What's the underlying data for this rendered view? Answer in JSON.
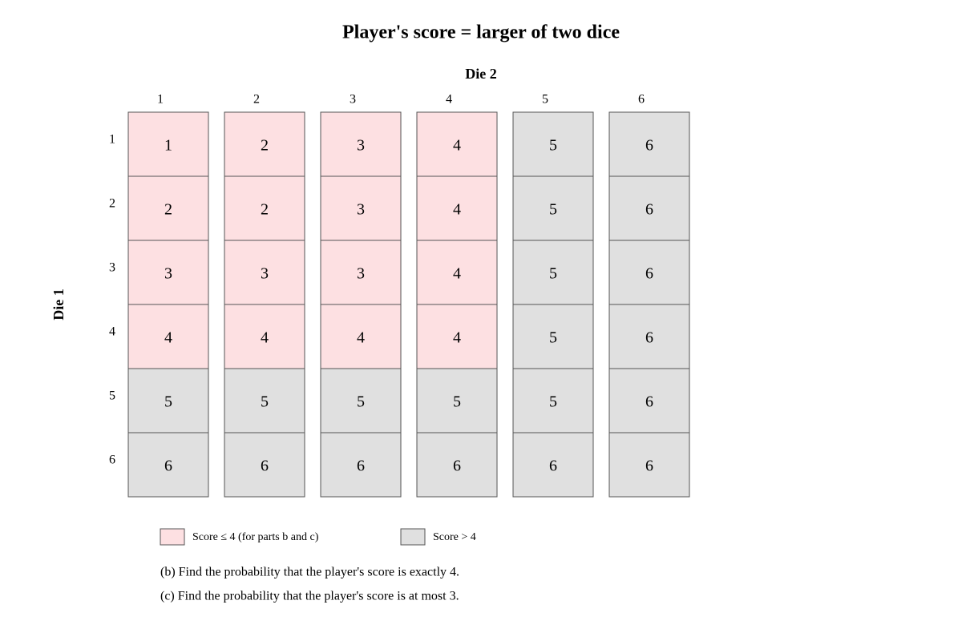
{
  "title": "Player's score = larger of two dice",
  "column_axis": {
    "label": "Die 2",
    "labels": [
      1,
      2,
      3,
      4,
      5,
      6
    ]
  },
  "row_axis": {
    "label": "Die 1",
    "labels": [
      1,
      2,
      3,
      4,
      5,
      6
    ]
  },
  "grid": {
    "rows": [
      [
        {
          "text": 1,
          "color": "#fde0e2"
        },
        {
          "text": 2,
          "color": "#fde0e2"
        },
        {
          "text": 3,
          "color": "#fde0e2"
        },
        {
          "text": 4,
          "color": "#fde0e2"
        },
        {
          "text": 5,
          "color": "#e0e0e0"
        },
        {
          "text": 6,
          "color": "#e0e0e0"
        }
      ],
      [
        {
          "text": 2,
          "color": "#fde0e2"
        },
        {
          "text": 2,
          "color": "#fde0e2"
        },
        {
          "text": 3,
          "color": "#fde0e2"
        },
        {
          "text": 4,
          "color": "#fde0e2"
        },
        {
          "text": 5,
          "color": "#e0e0e0"
        },
        {
          "text": 6,
          "color": "#e0e0e0"
        }
      ],
      [
        {
          "text": 3,
          "color": "#fde0e2"
        },
        {
          "text": 3,
          "color": "#fde0e2"
        },
        {
          "text": 3,
          "color": "#fde0e2"
        },
        {
          "text": 4,
          "color": "#fde0e2"
        },
        {
          "text": 5,
          "color": "#e0e0e0"
        },
        {
          "text": 6,
          "color": "#e0e0e0"
        }
      ],
      [
        {
          "text": 4,
          "color": "#fde0e2"
        },
        {
          "text": 4,
          "color": "#fde0e2"
        },
        {
          "text": 4,
          "color": "#fde0e2"
        },
        {
          "text": 4,
          "color": "#fde0e2"
        },
        {
          "text": 5,
          "color": "#e0e0e0"
        },
        {
          "text": 6,
          "color": "#e0e0e0"
        }
      ],
      [
        {
          "text": 5,
          "color": "#e0e0e0"
        },
        {
          "text": 5,
          "color": "#e0e0e0"
        },
        {
          "text": 5,
          "color": "#e0e0e0"
        },
        {
          "text": 5,
          "color": "#e0e0e0"
        },
        {
          "text": 5,
          "color": "#e0e0e0"
        },
        {
          "text": 6,
          "color": "#e0e0e0"
        }
      ],
      [
        {
          "text": 6,
          "color": "#e0e0e0"
        },
        {
          "text": 6,
          "color": "#e0e0e0"
        },
        {
          "text": 6,
          "color": "#e0e0e0"
        },
        {
          "text": 6,
          "color": "#e0e0e0"
        },
        {
          "text": 6,
          "color": "#e0e0e0"
        },
        {
          "text": 6,
          "color": "#e0e0e0"
        }
      ]
    ]
  },
  "legend": {
    "items": [
      {
        "label": "Score ≤ 4 (for parts b and c)",
        "color": "#fde0e2"
      },
      {
        "label": "Score > 4",
        "color": "#e0e0e0"
      }
    ]
  },
  "questions": [
    "(b) Find the probability that the player's score is exactly 4.",
    "(c) Find the probability that the player's score is at most 3."
  ]
}
